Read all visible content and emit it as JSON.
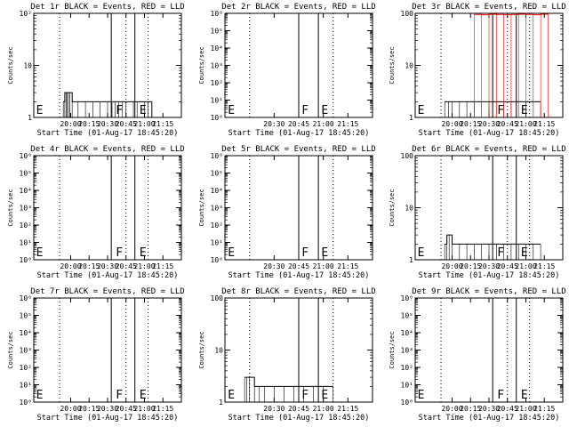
{
  "chart_data": [
    {
      "type": "line",
      "title": "Det 1r BLACK = Events, RED = LLD",
      "xlabel": "Start Time (01-Aug-17 18:45:20)",
      "ylabel": "Counts/sec",
      "scale": "log",
      "ylim": [
        1,
        100
      ],
      "yticks": [
        {
          "v": 1,
          "label": "1"
        },
        {
          "v": 10,
          "label": "10"
        },
        {
          "v": 100,
          "label": "10²"
        }
      ],
      "xlim": [
        19.5,
        21.5
      ],
      "xticks": [
        {
          "v": 20.0,
          "label": "20:00"
        },
        {
          "v": 20.25,
          "label": "20:15"
        },
        {
          "v": 20.5,
          "label": "20:30"
        },
        {
          "v": 20.75,
          "label": "20:45"
        },
        {
          "v": 21.0,
          "label": "21:00"
        },
        {
          "v": 21.25,
          "label": "21:15"
        }
      ],
      "dotted_x": [
        19.85,
        20.75,
        21.05
      ],
      "solid_x": [
        20.55,
        20.87
      ],
      "markers": [
        {
          "x": 19.52,
          "text": "E"
        },
        {
          "x": 20.6,
          "text": "F"
        },
        {
          "x": 20.92,
          "text": "E"
        }
      ],
      "series": [
        {
          "name": "Events",
          "color": "#000000",
          "x": [
            19.9,
            19.92,
            19.94,
            19.95,
            19.97,
            19.99,
            20.02,
            20.1,
            20.2,
            20.3,
            20.4,
            20.5,
            20.56,
            20.6,
            20.65,
            20.7,
            20.75,
            20.85,
            20.9,
            21.0,
            21.05,
            21.1
          ],
          "y": [
            2,
            3,
            3,
            3,
            3,
            3,
            2,
            2,
            2,
            2,
            2,
            2,
            2,
            2,
            2,
            2,
            2,
            2,
            2,
            2,
            2,
            1
          ]
        }
      ]
    },
    {
      "type": "line",
      "title": "Det 2r BLACK = Events, RED = LLD",
      "xlabel": "Start Time (01-Aug-17 18:45:20)",
      "ylabel": "Counts/sec",
      "scale": "log",
      "ylim": [
        1,
        1000000
      ],
      "yticks": [
        {
          "v": 1,
          "label": "10⁰"
        },
        {
          "v": 10,
          "label": "10¹"
        },
        {
          "v": 100,
          "label": "10²"
        },
        {
          "v": 1000,
          "label": "10³"
        },
        {
          "v": 10000,
          "label": "10⁴"
        },
        {
          "v": 100000,
          "label": "10⁵"
        },
        {
          "v": 1000000,
          "label": "10⁶"
        }
      ],
      "xlim": [
        20.0,
        21.5
      ],
      "xticks": [
        {
          "v": 20.5,
          "label": "20:30"
        },
        {
          "v": 20.75,
          "label": "20:45"
        },
        {
          "v": 21.0,
          "label": "21:00"
        },
        {
          "v": 21.25,
          "label": "21:15"
        }
      ],
      "dotted_x": [
        20.25,
        21.1
      ],
      "solid_x": [
        20.75,
        20.95
      ],
      "markers": [
        {
          "x": 20.02,
          "text": "E"
        },
        {
          "x": 20.77,
          "text": "F"
        },
        {
          "x": 20.97,
          "text": "E"
        }
      ],
      "series": []
    },
    {
      "type": "line",
      "title": "Det 3r BLACK = Events, RED = LLD",
      "xlabel": "Start Time (01-Aug-17 18:45:20)",
      "ylabel": "Counts/sec",
      "scale": "log",
      "ylim": [
        1,
        100
      ],
      "yticks": [
        {
          "v": 1,
          "label": "1"
        },
        {
          "v": 10,
          "label": "10"
        },
        {
          "v": 100,
          "label": "100"
        }
      ],
      "xlim": [
        19.5,
        21.5
      ],
      "xticks": [
        {
          "v": 20.0,
          "label": "20:00"
        },
        {
          "v": 20.25,
          "label": "20:15"
        },
        {
          "v": 20.5,
          "label": "20:30"
        },
        {
          "v": 20.75,
          "label": "20:45"
        },
        {
          "v": 21.0,
          "label": "21:00"
        },
        {
          "v": 21.25,
          "label": "21:15"
        }
      ],
      "dotted_x": [
        19.85,
        20.75,
        21.05
      ],
      "solid_x": [
        20.55,
        20.87
      ],
      "markers": [
        {
          "x": 19.52,
          "text": "E"
        },
        {
          "x": 20.6,
          "text": "F"
        },
        {
          "x": 20.92,
          "text": "E"
        }
      ],
      "series": [
        {
          "name": "Events",
          "color": "#000000",
          "x": [
            19.9,
            19.95,
            20.0,
            20.1,
            20.2,
            20.3,
            20.4,
            20.5,
            20.6,
            20.7,
            20.8,
            20.9,
            21.0,
            21.1,
            21.2
          ],
          "y": [
            2,
            2,
            2,
            2,
            2,
            2,
            2,
            2,
            2,
            2,
            2,
            2,
            2,
            2,
            2
          ]
        },
        {
          "name": "LLD",
          "color": "#ff0000",
          "x": [
            20.3,
            20.4,
            20.5,
            20.6,
            20.7,
            20.8,
            20.9,
            21.0,
            21.1,
            21.2,
            21.3
          ],
          "y": [
            95,
            94,
            96,
            95,
            94,
            95,
            96,
            95,
            94,
            96,
            95
          ]
        }
      ]
    },
    {
      "type": "line",
      "title": "Det 4r BLACK = Events, RED = LLD",
      "xlabel": "Start Time (01-Aug-17 18:45:20)",
      "ylabel": "Counts/sec",
      "scale": "log",
      "ylim": [
        1,
        1000000
      ],
      "yticks": [
        {
          "v": 1,
          "label": "10⁰"
        },
        {
          "v": 10,
          "label": "10¹"
        },
        {
          "v": 100,
          "label": "10²"
        },
        {
          "v": 1000,
          "label": "10³"
        },
        {
          "v": 10000,
          "label": "10⁴"
        },
        {
          "v": 100000,
          "label": "10⁵"
        },
        {
          "v": 1000000,
          "label": "10⁶"
        }
      ],
      "xlim": [
        19.5,
        21.5
      ],
      "xticks": [
        {
          "v": 20.0,
          "label": "20:00"
        },
        {
          "v": 20.25,
          "label": "20:15"
        },
        {
          "v": 20.5,
          "label": "20:30"
        },
        {
          "v": 20.75,
          "label": "20:45"
        },
        {
          "v": 21.0,
          "label": "21:00"
        },
        {
          "v": 21.25,
          "label": "21:15"
        }
      ],
      "dotted_x": [
        19.85,
        20.75,
        21.05
      ],
      "solid_x": [
        20.55,
        20.87
      ],
      "markers": [
        {
          "x": 19.52,
          "text": "E"
        },
        {
          "x": 20.6,
          "text": "F"
        },
        {
          "x": 20.92,
          "text": "E"
        }
      ],
      "series": []
    },
    {
      "type": "line",
      "title": "Det 5r BLACK = Events, RED = LLD",
      "xlabel": "Start Time (01-Aug-17 18:45:20)",
      "ylabel": "Counts/sec",
      "scale": "log",
      "ylim": [
        1,
        1000000
      ],
      "yticks": [
        {
          "v": 1,
          "label": "10⁰"
        },
        {
          "v": 10,
          "label": "10¹"
        },
        {
          "v": 100,
          "label": "10²"
        },
        {
          "v": 1000,
          "label": "10³"
        },
        {
          "v": 10000,
          "label": "10⁴"
        },
        {
          "v": 100000,
          "label": "10⁵"
        },
        {
          "v": 1000000,
          "label": "10⁶"
        }
      ],
      "xlim": [
        20.0,
        21.5
      ],
      "xticks": [
        {
          "v": 20.5,
          "label": "20:30"
        },
        {
          "v": 20.75,
          "label": "20:45"
        },
        {
          "v": 21.0,
          "label": "21:00"
        },
        {
          "v": 21.25,
          "label": "21:15"
        }
      ],
      "dotted_x": [
        20.25,
        21.1
      ],
      "solid_x": [
        20.75,
        20.95
      ],
      "markers": [
        {
          "x": 20.02,
          "text": "E"
        },
        {
          "x": 20.77,
          "text": "F"
        },
        {
          "x": 20.97,
          "text": "E"
        }
      ],
      "series": []
    },
    {
      "type": "line",
      "title": "Det 6r BLACK = Events, RED = LLD",
      "xlabel": "Start Time (01-Aug-17 18:45:20)",
      "ylabel": "Counts/sec",
      "scale": "log",
      "ylim": [
        1,
        100
      ],
      "yticks": [
        {
          "v": 1,
          "label": "1"
        },
        {
          "v": 10,
          "label": "10"
        },
        {
          "v": 100,
          "label": "100"
        }
      ],
      "xlim": [
        19.5,
        21.5
      ],
      "xticks": [
        {
          "v": 20.0,
          "label": "20:00"
        },
        {
          "v": 20.25,
          "label": "20:15"
        },
        {
          "v": 20.5,
          "label": "20:30"
        },
        {
          "v": 20.75,
          "label": "20:45"
        },
        {
          "v": 21.0,
          "label": "21:00"
        },
        {
          "v": 21.25,
          "label": "21:15"
        }
      ],
      "dotted_x": [
        19.85,
        20.75,
        21.05
      ],
      "solid_x": [
        20.55,
        20.87
      ],
      "markers": [
        {
          "x": 19.52,
          "text": "E"
        },
        {
          "x": 20.6,
          "text": "F"
        },
        {
          "x": 20.92,
          "text": "E"
        }
      ],
      "series": [
        {
          "name": "Events",
          "color": "#000000",
          "x": [
            19.9,
            19.93,
            19.96,
            20.0,
            20.1,
            20.2,
            20.3,
            20.4,
            20.5,
            20.6,
            20.7,
            20.8,
            20.9,
            21.0,
            21.1,
            21.2
          ],
          "y": [
            2,
            3,
            3,
            2,
            2,
            2,
            2,
            2,
            2,
            2,
            2,
            2,
            2,
            2,
            2,
            2
          ]
        }
      ]
    },
    {
      "type": "line",
      "title": "Det 7r BLACK = Events, RED = LLD",
      "xlabel": "Start Time (01-Aug-17 18:45:20)",
      "ylabel": "Counts/sec",
      "scale": "log",
      "ylim": [
        1,
        1000000
      ],
      "yticks": [
        {
          "v": 1,
          "label": "10⁰"
        },
        {
          "v": 10,
          "label": "10¹"
        },
        {
          "v": 100,
          "label": "10²"
        },
        {
          "v": 1000,
          "label": "10³"
        },
        {
          "v": 10000,
          "label": "10⁴"
        },
        {
          "v": 100000,
          "label": "10⁵"
        },
        {
          "v": 1000000,
          "label": "10⁶"
        }
      ],
      "xlim": [
        19.5,
        21.5
      ],
      "xticks": [
        {
          "v": 20.0,
          "label": "20:00"
        },
        {
          "v": 20.25,
          "label": "20:15"
        },
        {
          "v": 20.5,
          "label": "20:30"
        },
        {
          "v": 20.75,
          "label": "20:45"
        },
        {
          "v": 21.0,
          "label": "21:00"
        },
        {
          "v": 21.25,
          "label": "21:15"
        }
      ],
      "dotted_x": [
        19.85,
        20.75,
        21.05
      ],
      "solid_x": [
        20.55,
        20.87
      ],
      "markers": [
        {
          "x": 19.52,
          "text": "E"
        },
        {
          "x": 20.6,
          "text": "F"
        },
        {
          "x": 20.92,
          "text": "E"
        }
      ],
      "series": []
    },
    {
      "type": "line",
      "title": "Det 8r BLACK = Events, RED = LLD",
      "xlabel": "Start Time (01-Aug-17 18:45:20)",
      "ylabel": "Counts/sec",
      "scale": "log",
      "ylim": [
        1,
        100
      ],
      "yticks": [
        {
          "v": 1,
          "label": "1"
        },
        {
          "v": 10,
          "label": "10"
        },
        {
          "v": 100,
          "label": "100"
        }
      ],
      "xlim": [
        20.0,
        21.5
      ],
      "xticks": [
        {
          "v": 20.5,
          "label": "20:30"
        },
        {
          "v": 20.75,
          "label": "20:45"
        },
        {
          "v": 21.0,
          "label": "21:00"
        },
        {
          "v": 21.25,
          "label": "21:15"
        }
      ],
      "dotted_x": [
        20.25,
        21.1
      ],
      "solid_x": [
        20.75,
        20.95
      ],
      "markers": [
        {
          "x": 20.02,
          "text": "E"
        },
        {
          "x": 20.77,
          "text": "F"
        },
        {
          "x": 20.97,
          "text": "E"
        }
      ],
      "series": [
        {
          "name": "Events",
          "color": "#000000",
          "x": [
            20.2,
            20.22,
            20.25,
            20.3,
            20.35,
            20.4,
            20.5,
            20.6,
            20.7,
            20.8,
            20.9,
            21.0,
            21.1
          ],
          "y": [
            3,
            3,
            3,
            2,
            2,
            2,
            2,
            2,
            2,
            2,
            2,
            2,
            2
          ]
        }
      ]
    },
    {
      "type": "line",
      "title": "Det 9r BLACK = Events, RED = LLD",
      "xlabel": "Start Time (01-Aug-17 18:45:20)",
      "ylabel": "Counts/sec",
      "scale": "log",
      "ylim": [
        1,
        1000000
      ],
      "yticks": [
        {
          "v": 1,
          "label": "10⁰"
        },
        {
          "v": 10,
          "label": "10¹"
        },
        {
          "v": 100,
          "label": "10²"
        },
        {
          "v": 1000,
          "label": "10³"
        },
        {
          "v": 10000,
          "label": "10⁴"
        },
        {
          "v": 100000,
          "label": "10⁵"
        },
        {
          "v": 1000000,
          "label": "10⁶"
        }
      ],
      "xlim": [
        19.5,
        21.5
      ],
      "xticks": [
        {
          "v": 20.0,
          "label": "20:00"
        },
        {
          "v": 20.25,
          "label": "20:15"
        },
        {
          "v": 20.5,
          "label": "20:30"
        },
        {
          "v": 20.75,
          "label": "20:45"
        },
        {
          "v": 21.0,
          "label": "21:00"
        },
        {
          "v": 21.25,
          "label": "21:15"
        }
      ],
      "dotted_x": [
        19.85,
        20.75,
        21.05
      ],
      "solid_x": [
        20.55,
        20.87
      ],
      "markers": [
        {
          "x": 19.52,
          "text": "E"
        },
        {
          "x": 20.6,
          "text": "F"
        },
        {
          "x": 20.92,
          "text": "E"
        }
      ],
      "series": []
    }
  ]
}
